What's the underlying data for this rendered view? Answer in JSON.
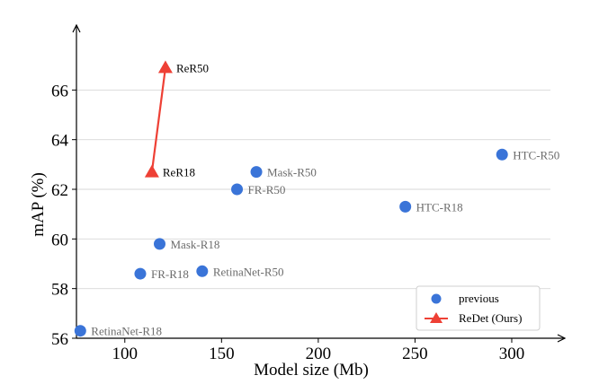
{
  "chart_data": {
    "type": "scatter",
    "title": "",
    "xlabel": "Model size (Mb)",
    "ylabel": "mAP (%)",
    "xlim": [
      75,
      320
    ],
    "ylim": [
      56,
      68
    ],
    "x_ticks": [
      100,
      150,
      200,
      250,
      300
    ],
    "y_ticks": [
      56,
      58,
      60,
      62,
      64,
      66
    ],
    "grid": "horizontal",
    "legend_position": "bottom-right",
    "series": [
      {
        "name": "previous",
        "marker": "circle",
        "color": "#3a74d8",
        "points": [
          {
            "label": "RetinaNet-R18",
            "x": 77,
            "y": 56.3
          },
          {
            "label": "FR-R18",
            "x": 108,
            "y": 58.6
          },
          {
            "label": "RetinaNet-R50",
            "x": 140,
            "y": 58.7
          },
          {
            "label": "Mask-R18",
            "x": 118,
            "y": 59.8
          },
          {
            "label": "FR-R50",
            "x": 158,
            "y": 62.0
          },
          {
            "label": "Mask-R50",
            "x": 168,
            "y": 62.7
          },
          {
            "label": "HTC-R18",
            "x": 245,
            "y": 61.3
          },
          {
            "label": "HTC-R50",
            "x": 295,
            "y": 63.4
          }
        ]
      },
      {
        "name": "ReDet (Ours)",
        "marker": "triangle",
        "color": "#ee4035",
        "points": [
          {
            "label": "ReR18",
            "x": 114,
            "y": 62.7
          },
          {
            "label": "ReR50",
            "x": 121,
            "y": 66.9
          }
        ]
      }
    ]
  }
}
